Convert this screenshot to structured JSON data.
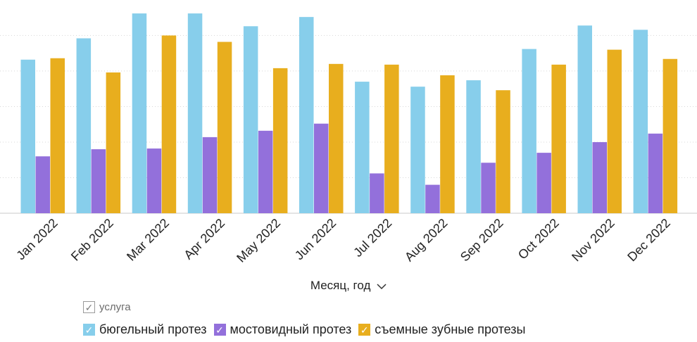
{
  "chart_data": {
    "type": "bar",
    "title": "",
    "xlabel": "Месяц, год",
    "ylabel": "",
    "ylim": [
      0,
      290
    ],
    "grid_values": [
      50,
      100,
      150,
      200,
      250
    ],
    "gridlines": true,
    "categories": [
      "Jan 2022",
      "Feb 2022",
      "Mar 2022",
      "Apr 2022",
      "May 2022",
      "Jun 2022",
      "Jul 2022",
      "Aug 2022",
      "Sep 2022",
      "Oct 2022",
      "Nov 2022",
      "Dec 2022"
    ],
    "series": [
      {
        "name": "бюгельный протез",
        "color": "#87CEEB",
        "values": [
          216,
          246,
          281,
          281,
          263,
          276,
          185,
          178,
          187,
          231,
          264,
          258
        ]
      },
      {
        "name": "мостовидный протез",
        "color": "#9370DB",
        "values": [
          80,
          90,
          91,
          107,
          116,
          126,
          56,
          40,
          71,
          85,
          100,
          112
        ]
      },
      {
        "name": "съемные зубные протезы",
        "color": "#E8AE1E",
        "values": [
          218,
          198,
          250,
          241,
          204,
          210,
          209,
          194,
          173,
          209,
          230,
          217
        ]
      }
    ],
    "legend": {
      "title": "услуга",
      "placement": "bottom-left"
    }
  },
  "axis_menu_icon": "chevron-down-icon",
  "legend_check_icon": "checkmark-icon"
}
